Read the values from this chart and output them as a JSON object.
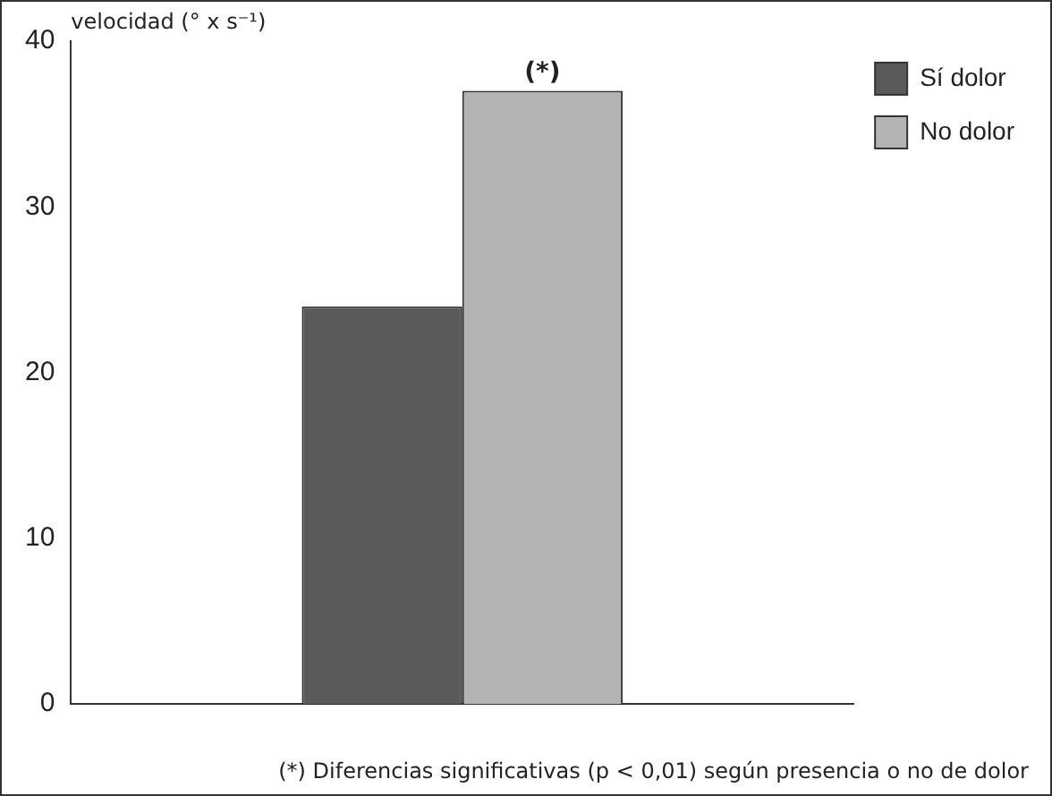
{
  "chart_data": {
    "type": "bar",
    "ylabel": "velocidad (° x s⁻¹)",
    "categories": [
      null
    ],
    "series": [
      {
        "name": "Sí dolor",
        "color": "#5a5a5a",
        "values": [
          24
        ]
      },
      {
        "name": "No dolor",
        "color": "#b4b4b4",
        "values": [
          37
        ]
      }
    ],
    "ylim": [
      0,
      40
    ],
    "yticks": [
      0,
      10,
      20,
      30,
      40
    ],
    "grid": false,
    "legend": "top right",
    "annotations": [
      {
        "text": "(*)",
        "y": 37
      },
      "(*) Diferencias significativas (p < 0,01) según presencia o no de dolor"
    ]
  }
}
